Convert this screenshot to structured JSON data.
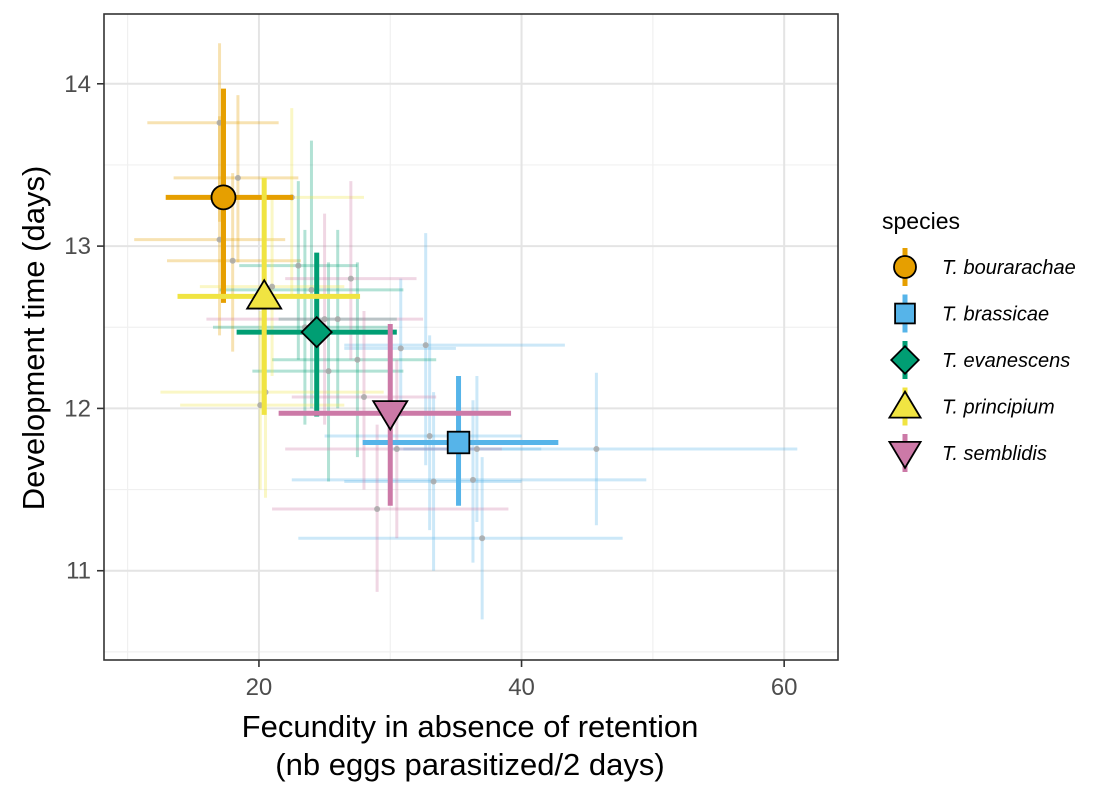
{
  "chart_data": {
    "type": "scatter",
    "title": "",
    "xlabel_line1": "Fecundity in absence of retention",
    "xlabel_line2": "(nb eggs parasitized/2 days)",
    "ylabel": "Development time (days)",
    "xlim": [
      8.2,
      64.1
    ],
    "ylim": [
      10.45,
      14.43
    ],
    "xticks": [
      20,
      40,
      60
    ],
    "yticks": [
      11,
      12,
      13,
      14
    ],
    "xtick_labels": [
      "20",
      "40",
      "60"
    ],
    "ytick_labels": [
      "11",
      "12",
      "13",
      "14"
    ],
    "grid": true,
    "legend": {
      "title": "species",
      "position": "right",
      "entries": [
        {
          "label": "T. bourarachae",
          "color": "#E69F00",
          "shape": "circle"
        },
        {
          "label": "T. brassicae",
          "color": "#56B4E9",
          "shape": "square"
        },
        {
          "label": "T. evanescens",
          "color": "#009E73",
          "shape": "diamond"
        },
        {
          "label": "T. principium",
          "color": "#F0E442",
          "shape": "triangle-up"
        },
        {
          "label": "T. semblidis",
          "color": "#CC79A7",
          "shape": "triangle-down"
        }
      ]
    },
    "series": [
      {
        "name": "T. bourarachae",
        "color": "#E69F00",
        "shape": "circle",
        "mean": {
          "x": 17.3,
          "y": 13.3,
          "xmin": 12.9,
          "xmax": 22.6,
          "ymin": 12.65,
          "ymax": 13.97
        },
        "lines": [
          {
            "x": 17.0,
            "y": 13.76,
            "xmin": 11.5,
            "xmax": 21.5,
            "ymin": 13.15,
            "ymax": 14.25
          },
          {
            "x": 18.4,
            "y": 13.42,
            "xmin": 13.5,
            "xmax": 23.0,
            "ymin": 12.9,
            "ymax": 13.93
          },
          {
            "x": 17.0,
            "y": 13.04,
            "xmin": 10.5,
            "xmax": 22.0,
            "ymin": 12.45,
            "ymax": 13.8
          },
          {
            "x": 18.0,
            "y": 12.91,
            "xmin": 13.0,
            "xmax": 23.2,
            "ymin": 12.35,
            "ymax": 13.45
          }
        ]
      },
      {
        "name": "T. brassicae",
        "color": "#56B4E9",
        "shape": "square",
        "mean": {
          "x": 35.2,
          "y": 11.79,
          "xmin": 27.9,
          "xmax": 42.8,
          "ymin": 11.4,
          "ymax": 12.2
        },
        "lines": [
          {
            "x": 30.8,
            "y": 12.37,
            "xmin": 26.5,
            "xmax": 35.0,
            "ymin": 11.95,
            "ymax": 12.8
          },
          {
            "x": 33.0,
            "y": 11.83,
            "xmin": 25.0,
            "xmax": 40.0,
            "ymin": 11.25,
            "ymax": 12.45
          },
          {
            "x": 36.6,
            "y": 11.75,
            "xmin": 31.0,
            "xmax": 41.5,
            "ymin": 11.3,
            "ymax": 12.2
          },
          {
            "x": 45.7,
            "y": 11.75,
            "xmin": 30.0,
            "xmax": 61.0,
            "ymin": 11.28,
            "ymax": 12.22
          },
          {
            "x": 33.3,
            "y": 11.55,
            "xmin": 26.5,
            "xmax": 40.0,
            "ymin": 11.0,
            "ymax": 12.1
          },
          {
            "x": 36.3,
            "y": 11.56,
            "xmin": 22.5,
            "xmax": 49.5,
            "ymin": 11.05,
            "ymax": 12.05
          },
          {
            "x": 37.0,
            "y": 11.2,
            "xmin": 23.0,
            "xmax": 47.7,
            "ymin": 10.7,
            "ymax": 11.7
          },
          {
            "x": 32.7,
            "y": 12.39,
            "xmin": 26.5,
            "xmax": 43.3,
            "ymin": 11.65,
            "ymax": 13.08
          }
        ]
      },
      {
        "name": "T. evanescens",
        "color": "#009E73",
        "shape": "diamond",
        "mean": {
          "x": 24.4,
          "y": 12.47,
          "xmin": 18.3,
          "xmax": 30.5,
          "ymin": 11.95,
          "ymax": 12.96
        },
        "lines": [
          {
            "x": 23.0,
            "y": 12.88,
            "xmin": 18.5,
            "xmax": 27.5,
            "ymin": 12.3,
            "ymax": 13.4
          },
          {
            "x": 24.0,
            "y": 12.73,
            "xmin": 17.0,
            "xmax": 31.0,
            "ymin": 12.0,
            "ymax": 13.65
          },
          {
            "x": 23.5,
            "y": 12.5,
            "xmin": 16.5,
            "xmax": 30.0,
            "ymin": 11.9,
            "ymax": 13.1
          },
          {
            "x": 25.3,
            "y": 12.23,
            "xmin": 19.5,
            "xmax": 31.0,
            "ymin": 11.55,
            "ymax": 12.9
          },
          {
            "x": 26.0,
            "y": 12.55,
            "xmin": 21.5,
            "xmax": 30.5,
            "ymin": 12.0,
            "ymax": 13.1
          },
          {
            "x": 27.5,
            "y": 12.3,
            "xmin": 21.0,
            "xmax": 33.5,
            "ymin": 11.7,
            "ymax": 12.9
          }
        ]
      },
      {
        "name": "T. principium",
        "color": "#F0E442",
        "shape": "triangle-up",
        "mean": {
          "x": 20.4,
          "y": 12.69,
          "xmin": 13.8,
          "xmax": 27.7,
          "ymin": 11.96,
          "ymax": 13.42
        },
        "lines": [
          {
            "x": 20.1,
            "y": 12.02,
            "xmin": 14.0,
            "xmax": 26.5,
            "ymin": 11.5,
            "ymax": 12.6
          },
          {
            "x": 20.5,
            "y": 12.1,
            "xmin": 12.5,
            "xmax": 29.5,
            "ymin": 11.45,
            "ymax": 12.6
          },
          {
            "x": 21.0,
            "y": 12.75,
            "xmin": 15.5,
            "xmax": 26.5,
            "ymin": 12.2,
            "ymax": 13.3
          },
          {
            "x": 22.5,
            "y": 13.3,
            "xmin": 17.0,
            "xmax": 28.0,
            "ymin": 12.7,
            "ymax": 13.85
          }
        ]
      },
      {
        "name": "T. semblidis",
        "color": "#CC79A7",
        "shape": "triangle-down",
        "mean": {
          "x": 30.0,
          "y": 11.97,
          "xmin": 21.5,
          "xmax": 39.2,
          "ymin": 11.4,
          "ymax": 12.52
        },
        "lines": [
          {
            "x": 25.0,
            "y": 12.55,
            "xmin": 16.0,
            "xmax": 32.5,
            "ymin": 11.9,
            "ymax": 13.2
          },
          {
            "x": 28.0,
            "y": 12.07,
            "xmin": 22.5,
            "xmax": 33.5,
            "ymin": 11.5,
            "ymax": 12.6
          },
          {
            "x": 29.0,
            "y": 11.38,
            "xmin": 21.0,
            "xmax": 39.0,
            "ymin": 10.87,
            "ymax": 11.9
          },
          {
            "x": 27.0,
            "y": 12.8,
            "xmin": 22.0,
            "xmax": 32.0,
            "ymin": 12.3,
            "ymax": 13.4
          },
          {
            "x": 30.5,
            "y": 11.75,
            "xmin": 22.0,
            "xmax": 38.5,
            "ymin": 11.2,
            "ymax": 12.3
          }
        ]
      }
    ]
  }
}
